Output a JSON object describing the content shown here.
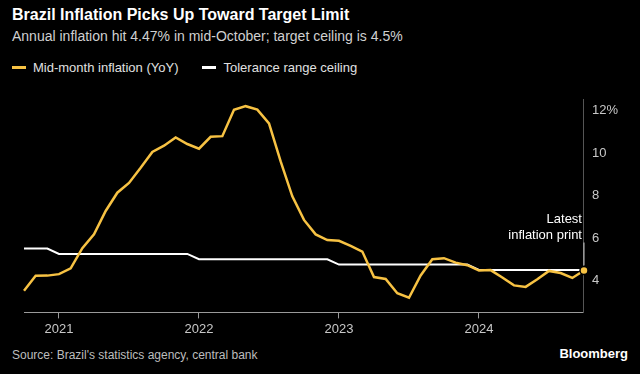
{
  "chart_data": {
    "type": "line",
    "title": "Brazil Inflation Picks Up Toward Target Limit",
    "subtitle": "Annual inflation hit 4.47% in mid-October; target ceiling is 4.5%",
    "source": "Source: Brazil's statistics agency, central bank",
    "credit": "Bloomberg",
    "annotation": {
      "lines": [
        "Latest",
        "inflation print"
      ]
    },
    "legend": "top-left",
    "grid": false,
    "categories": [
      null,
      null,
      null,
      "2021",
      null,
      null,
      null,
      null,
      null,
      null,
      null,
      null,
      null,
      null,
      null,
      "2022",
      null,
      null,
      null,
      null,
      null,
      null,
      null,
      null,
      null,
      null,
      null,
      "2023",
      null,
      null,
      null,
      null,
      null,
      null,
      null,
      null,
      null,
      null,
      null,
      "2024",
      null,
      null,
      null,
      null,
      null,
      null,
      null,
      null,
      null
    ],
    "series": [
      {
        "name": "Mid-month inflation (YoY)",
        "color": "#f7c243",
        "values": [
          3.52,
          4.22,
          4.23,
          4.3,
          4.57,
          5.52,
          6.17,
          7.27,
          8.13,
          8.59,
          9.3,
          10.05,
          10.34,
          10.73,
          10.42,
          10.2,
          10.76,
          10.79,
          12.03,
          12.2,
          12.04,
          11.39,
          9.6,
          7.96,
          6.85,
          6.17,
          5.9,
          5.87,
          5.63,
          5.36,
          4.16,
          4.07,
          3.4,
          3.19,
          4.24,
          5.0,
          5.05,
          4.84,
          4.72,
          4.47,
          4.49,
          4.14,
          3.77,
          3.7,
          4.06,
          4.45,
          4.35,
          4.12,
          4.47
        ]
      },
      {
        "name": "Tolerance range ceiling",
        "color": "#ffffff",
        "values": [
          5.5,
          5.5,
          5.5,
          5.25,
          5.25,
          5.25,
          5.25,
          5.25,
          5.25,
          5.25,
          5.25,
          5.25,
          5.25,
          5.25,
          5.25,
          5.0,
          5.0,
          5.0,
          5.0,
          5.0,
          5.0,
          5.0,
          5.0,
          5.0,
          5.0,
          5.0,
          5.0,
          4.75,
          4.75,
          4.75,
          4.75,
          4.75,
          4.75,
          4.75,
          4.75,
          4.75,
          4.75,
          4.75,
          4.75,
          4.5,
          4.5,
          4.5,
          4.5,
          4.5,
          4.5,
          4.5,
          4.5,
          4.5,
          4.5
        ]
      }
    ],
    "ylim": [
      2.5,
      12.5
    ],
    "yticks": [
      4,
      6,
      8,
      10,
      {
        "value": 12,
        "label": "12%"
      }
    ]
  }
}
